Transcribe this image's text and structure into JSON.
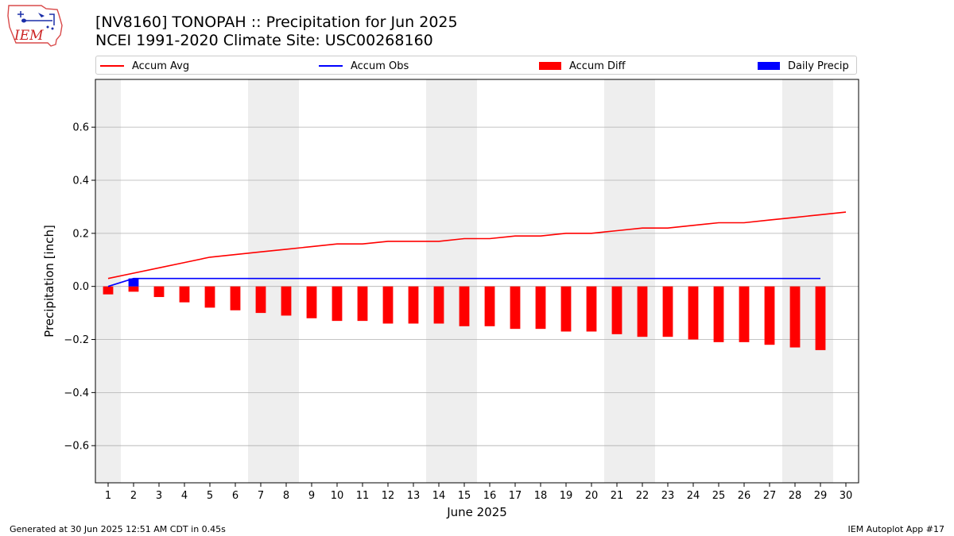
{
  "header": {
    "logo_text": "IEM",
    "title_line1": "[NV8160] TONOPAH :: Precipitation for Jun 2025",
    "title_line2": "NCEI 1991-2020 Climate Site: USC00268160"
  },
  "legend": {
    "items": [
      {
        "label": "Accum Avg",
        "kind": "line",
        "color": "#ff0000"
      },
      {
        "label": "Accum Obs",
        "kind": "line",
        "color": "#0000ff"
      },
      {
        "label": "Accum Diff",
        "kind": "bar",
        "color": "#ff0000"
      },
      {
        "label": "Daily Precip",
        "kind": "bar",
        "color": "#0000ff"
      }
    ]
  },
  "footer": {
    "left": "Generated at 30 Jun 2025 12:51 AM CDT in 0.45s",
    "right": "IEM Autoplot App #17"
  },
  "chart_data": {
    "type": "bar",
    "xlabel": "June 2025",
    "ylabel": "Precipitation [inch]",
    "ylim": [
      -0.74,
      0.78
    ],
    "yticks": [
      -0.6,
      -0.4,
      -0.2,
      0.0,
      0.2,
      0.4,
      0.6
    ],
    "ytick_labels": [
      "−0.6",
      "−0.4",
      "−0.2",
      "0.0",
      "0.2",
      "0.4",
      "0.6"
    ],
    "xlim": [
      0.5,
      30.5
    ],
    "categories": [
      "1",
      "2",
      "3",
      "4",
      "5",
      "6",
      "7",
      "8",
      "9",
      "10",
      "11",
      "12",
      "13",
      "14",
      "15",
      "16",
      "17",
      "18",
      "19",
      "20",
      "21",
      "22",
      "23",
      "24",
      "25",
      "26",
      "27",
      "28",
      "29",
      "30"
    ],
    "grid": "horizontal",
    "legend_position": "top",
    "weekend_shading": [
      [
        0.5,
        1.5
      ],
      [
        6.5,
        8.5
      ],
      [
        13.5,
        15.5
      ],
      [
        20.5,
        22.5
      ],
      [
        27.5,
        29.5
      ]
    ],
    "series": [
      {
        "name": "Accum Avg",
        "type": "line",
        "color": "#ff0000",
        "x": [
          1,
          2,
          3,
          4,
          5,
          6,
          7,
          8,
          9,
          10,
          11,
          12,
          13,
          14,
          15,
          16,
          17,
          18,
          19,
          20,
          21,
          22,
          23,
          24,
          25,
          26,
          27,
          28,
          29,
          30
        ],
        "values": [
          0.03,
          0.05,
          0.07,
          0.09,
          0.11,
          0.12,
          0.13,
          0.14,
          0.15,
          0.16,
          0.16,
          0.17,
          0.17,
          0.17,
          0.18,
          0.18,
          0.19,
          0.19,
          0.2,
          0.2,
          0.21,
          0.22,
          0.22,
          0.23,
          0.24,
          0.24,
          0.25,
          0.26,
          0.27,
          0.28
        ]
      },
      {
        "name": "Accum Obs",
        "type": "line",
        "color": "#0000ff",
        "x": [
          1,
          2,
          3,
          4,
          5,
          6,
          7,
          8,
          9,
          10,
          11,
          12,
          13,
          14,
          15,
          16,
          17,
          18,
          19,
          20,
          21,
          22,
          23,
          24,
          25,
          26,
          27,
          28,
          29
        ],
        "values": [
          0.0,
          0.03,
          0.03,
          0.03,
          0.03,
          0.03,
          0.03,
          0.03,
          0.03,
          0.03,
          0.03,
          0.03,
          0.03,
          0.03,
          0.03,
          0.03,
          0.03,
          0.03,
          0.03,
          0.03,
          0.03,
          0.03,
          0.03,
          0.03,
          0.03,
          0.03,
          0.03,
          0.03,
          0.03
        ]
      },
      {
        "name": "Accum Diff",
        "type": "bar",
        "color": "#ff0000",
        "x": [
          1,
          2,
          3,
          4,
          5,
          6,
          7,
          8,
          9,
          10,
          11,
          12,
          13,
          14,
          15,
          16,
          17,
          18,
          19,
          20,
          21,
          22,
          23,
          24,
          25,
          26,
          27,
          28,
          29
        ],
        "values": [
          -0.03,
          -0.02,
          -0.04,
          -0.06,
          -0.08,
          -0.09,
          -0.1,
          -0.11,
          -0.12,
          -0.13,
          -0.13,
          -0.14,
          -0.14,
          -0.14,
          -0.15,
          -0.15,
          -0.16,
          -0.16,
          -0.17,
          -0.17,
          -0.18,
          -0.19,
          -0.19,
          -0.2,
          -0.21,
          -0.21,
          -0.22,
          -0.23,
          -0.24
        ]
      },
      {
        "name": "Daily Precip",
        "type": "bar",
        "color": "#0000ff",
        "x": [
          2
        ],
        "values": [
          0.03
        ]
      }
    ]
  }
}
